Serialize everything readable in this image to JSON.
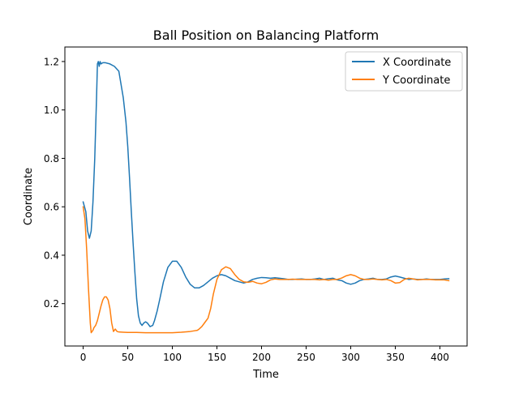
{
  "chart_data": {
    "type": "line",
    "title": "Ball Position on Balancing Platform",
    "xlabel": "Time",
    "ylabel": "Coordinate",
    "xlim": [
      -20.5,
      430.5
    ],
    "ylim": [
      0.025,
      1.26
    ],
    "xticks": [
      0,
      50,
      100,
      150,
      200,
      250,
      300,
      350,
      400
    ],
    "yticks": [
      0.2,
      0.4,
      0.6,
      0.8,
      1.0,
      1.2
    ],
    "ytick_labels": [
      "0.2",
      "0.4",
      "0.6",
      "0.8",
      "1.0",
      "1.2"
    ],
    "grid": false,
    "legend_position": "top-right",
    "series": [
      {
        "name": "X Coordinate",
        "color": "#1f77b4",
        "x": [
          0,
          3,
          5,
          7,
          9,
          11,
          13,
          15,
          16,
          17,
          18,
          19,
          20,
          22,
          25,
          30,
          35,
          40,
          45,
          48,
          50,
          52,
          54,
          56,
          58,
          60,
          62,
          64,
          66,
          68,
          70,
          72,
          75,
          78,
          80,
          83,
          86,
          90,
          95,
          100,
          105,
          110,
          115,
          120,
          125,
          130,
          135,
          140,
          145,
          150,
          155,
          160,
          165,
          170,
          175,
          180,
          185,
          190,
          195,
          200,
          205,
          210,
          215,
          220,
          225,
          230,
          235,
          240,
          245,
          250,
          255,
          260,
          265,
          270,
          275,
          280,
          285,
          290,
          295,
          300,
          305,
          310,
          315,
          320,
          325,
          330,
          335,
          340,
          345,
          350,
          355,
          360,
          365,
          370,
          375,
          380,
          385,
          390,
          395,
          400,
          405,
          410
        ],
        "y": [
          0.62,
          0.58,
          0.5,
          0.47,
          0.5,
          0.62,
          0.8,
          1.05,
          1.19,
          1.2,
          1.18,
          1.2,
          1.19,
          1.195,
          1.195,
          1.19,
          1.18,
          1.16,
          1.05,
          0.95,
          0.85,
          0.72,
          0.58,
          0.45,
          0.33,
          0.22,
          0.15,
          0.12,
          0.11,
          0.12,
          0.125,
          0.12,
          0.105,
          0.11,
          0.13,
          0.17,
          0.22,
          0.29,
          0.35,
          0.375,
          0.375,
          0.35,
          0.31,
          0.28,
          0.265,
          0.265,
          0.275,
          0.29,
          0.305,
          0.315,
          0.32,
          0.315,
          0.305,
          0.295,
          0.29,
          0.285,
          0.29,
          0.3,
          0.305,
          0.308,
          0.307,
          0.305,
          0.307,
          0.305,
          0.303,
          0.3,
          0.3,
          0.301,
          0.302,
          0.3,
          0.3,
          0.302,
          0.305,
          0.3,
          0.303,
          0.305,
          0.298,
          0.295,
          0.285,
          0.28,
          0.285,
          0.295,
          0.3,
          0.302,
          0.305,
          0.3,
          0.3,
          0.302,
          0.31,
          0.314,
          0.31,
          0.305,
          0.3,
          0.302,
          0.3,
          0.3,
          0.302,
          0.3,
          0.3,
          0.3,
          0.302,
          0.303
        ]
      },
      {
        "name": "Y Coordinate",
        "color": "#ff7f0e",
        "x": [
          0,
          2,
          4,
          6,
          8,
          9,
          10,
          11,
          12,
          14,
          16,
          18,
          20,
          22,
          24,
          26,
          28,
          30,
          32,
          34,
          35,
          36,
          37,
          38,
          40,
          45,
          50,
          60,
          70,
          80,
          90,
          100,
          110,
          120,
          125,
          128,
          130,
          133,
          136,
          140,
          143,
          146,
          150,
          155,
          160,
          165,
          170,
          175,
          180,
          185,
          190,
          195,
          200,
          205,
          210,
          215,
          220,
          225,
          230,
          235,
          240,
          245,
          250,
          255,
          260,
          265,
          270,
          275,
          280,
          285,
          290,
          295,
          300,
          305,
          310,
          315,
          320,
          325,
          330,
          335,
          340,
          345,
          350,
          355,
          360,
          365,
          370,
          375,
          380,
          385,
          390,
          395,
          400,
          405,
          410
        ],
        "y": [
          0.6,
          0.55,
          0.42,
          0.26,
          0.12,
          0.08,
          0.085,
          0.09,
          0.1,
          0.11,
          0.13,
          0.16,
          0.19,
          0.215,
          0.228,
          0.228,
          0.215,
          0.18,
          0.12,
          0.085,
          0.09,
          0.095,
          0.09,
          0.085,
          0.083,
          0.082,
          0.081,
          0.081,
          0.08,
          0.08,
          0.08,
          0.08,
          0.082,
          0.085,
          0.088,
          0.09,
          0.095,
          0.105,
          0.12,
          0.14,
          0.18,
          0.24,
          0.3,
          0.34,
          0.352,
          0.345,
          0.32,
          0.3,
          0.29,
          0.288,
          0.292,
          0.285,
          0.282,
          0.288,
          0.298,
          0.302,
          0.3,
          0.3,
          0.3,
          0.301,
          0.3,
          0.3,
          0.3,
          0.3,
          0.3,
          0.298,
          0.3,
          0.297,
          0.3,
          0.3,
          0.306,
          0.315,
          0.32,
          0.315,
          0.305,
          0.3,
          0.3,
          0.302,
          0.3,
          0.298,
          0.3,
          0.295,
          0.285,
          0.287,
          0.3,
          0.305,
          0.302,
          0.298,
          0.3,
          0.3,
          0.3,
          0.298,
          0.298,
          0.298,
          0.295
        ]
      }
    ]
  }
}
